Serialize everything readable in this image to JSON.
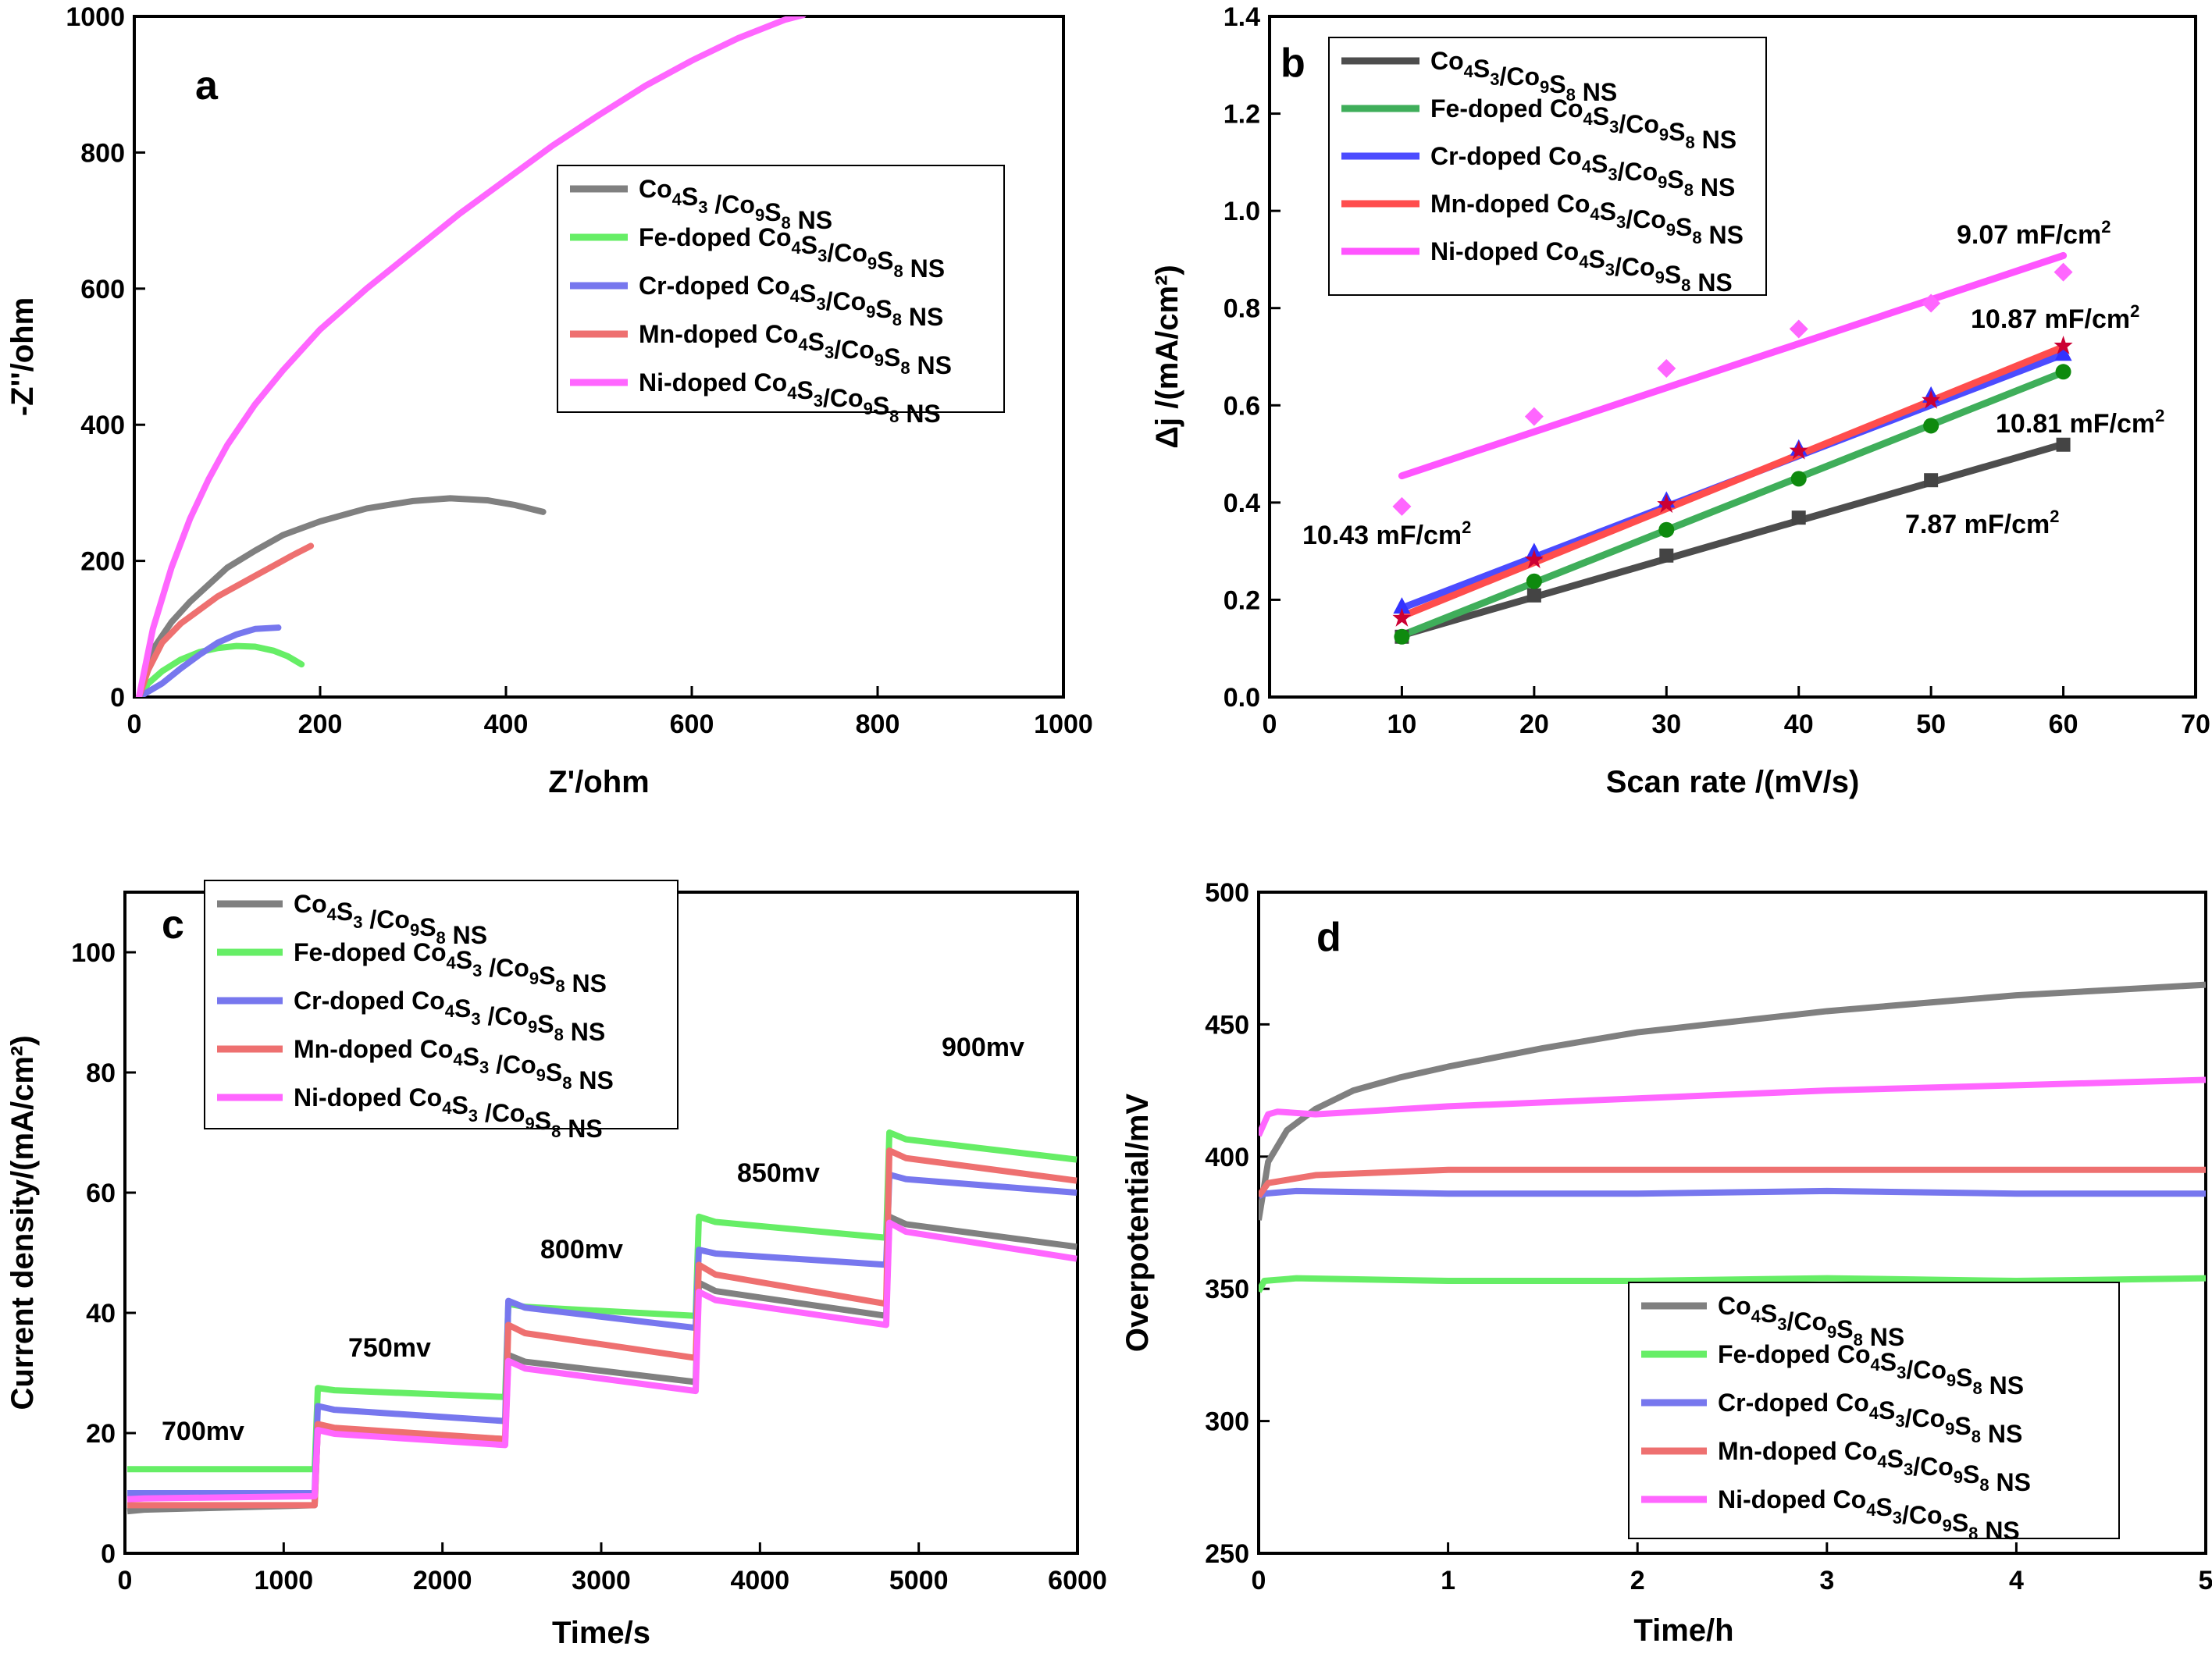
{
  "series_names": [
    "Co₄S₃/Co₉S₈ NS",
    "Fe-doped Co₄S₃/Co₉S₈ NS",
    "Cr-doped Co₄S₃/Co₉S₈ NS",
    "Mn-doped Co₄S₃/Co₉S₈ NS",
    "Ni-doped Co₄S₃/Co₉S₈ NS"
  ],
  "colors": {
    "co": "#808080",
    "fe": "#66ee66",
    "cr": "#7777ee",
    "mn": "#ee7070",
    "ni": "#ff66ff",
    "b_co": "#4d4d4d",
    "b_fe": "#3fae5a",
    "b_cr": "#4c4cff",
    "b_mn": "#ff4d4d",
    "b_ni": "#ff55ff",
    "b_co_mk": "#444444",
    "b_fe_mk": "#0e8a0e",
    "b_cr_mk": "#3333ff",
    "b_mn_mk": "#cc0033",
    "b_ni_mk": "#ff66ff",
    "ann_co": "#000000",
    "ann_fe": "#008800",
    "ann_cr": "#0000ee",
    "ann_mn": "#ee0000",
    "ann_ni": "#ff00ff"
  },
  "chart_data": [
    {
      "panel": "a",
      "type": "line",
      "xlabel": "Z'/ohm",
      "ylabel": "-Z''/ohm",
      "xlim": [
        0,
        1000
      ],
      "ylim": [
        0,
        1000
      ],
      "xticks": [
        0,
        200,
        400,
        600,
        800,
        1000
      ],
      "yticks": [
        0,
        200,
        400,
        600,
        800,
        1000
      ],
      "legend": [
        "Co4S3 /Co9S8 NS",
        "Fe-doped Co4S3/Co9S8 NS",
        "Cr-doped Co4S3/Co9S8 NS",
        "Mn-doped Co4S3/Co9S8 NS",
        "Ni-doped Co4S3/Co9S8 NS"
      ],
      "series": [
        {
          "name": "Co4S3/Co9S8 NS",
          "x": [
            5,
            20,
            40,
            60,
            80,
            100,
            130,
            160,
            200,
            250,
            300,
            340,
            380,
            410,
            440
          ],
          "y": [
            0,
            70,
            110,
            140,
            165,
            190,
            215,
            238,
            258,
            277,
            288,
            292,
            289,
            282,
            272
          ]
        },
        {
          "name": "Fe-doped Co4S3/Co9S8 NS",
          "x": [
            5,
            15,
            30,
            50,
            70,
            90,
            110,
            130,
            150,
            165,
            180
          ],
          "y": [
            0,
            20,
            38,
            55,
            66,
            72,
            75,
            74,
            68,
            60,
            48
          ]
        },
        {
          "name": "Cr-doped Co4S3/Co9S8 NS",
          "x": [
            5,
            15,
            30,
            50,
            70,
            90,
            110,
            130,
            155
          ],
          "y": [
            0,
            8,
            20,
            42,
            62,
            80,
            92,
            100,
            102
          ]
        },
        {
          "name": "Mn-doped Co4S3/Co9S8 NS",
          "x": [
            5,
            15,
            30,
            50,
            70,
            90,
            110,
            130,
            150,
            170,
            190
          ],
          "y": [
            0,
            40,
            80,
            108,
            128,
            148,
            163,
            178,
            193,
            208,
            222
          ]
        },
        {
          "name": "Ni-doped Co4S3/Co9S8 NS",
          "x": [
            5,
            20,
            40,
            60,
            80,
            100,
            130,
            160,
            200,
            250,
            300,
            350,
            400,
            450,
            500,
            550,
            600,
            650,
            700,
            720
          ],
          "y": [
            0,
            100,
            190,
            262,
            320,
            370,
            430,
            480,
            540,
            600,
            655,
            710,
            760,
            810,
            855,
            898,
            935,
            968,
            995,
            1002
          ]
        }
      ]
    },
    {
      "panel": "b",
      "type": "scatter",
      "xlabel": "Scan rate /(mV/s)",
      "ylabel": "Δj /(mA/cm²)",
      "xlim": [
        0,
        70
      ],
      "ylim": [
        0.0,
        1.4
      ],
      "xticks": [
        0,
        10,
        20,
        30,
        40,
        50,
        60,
        70
      ],
      "yticks": [
        0.0,
        0.2,
        0.4,
        0.6,
        0.8,
        1.0,
        1.2,
        1.4
      ],
      "legend": [
        "Co4S3/Co9S8 NS",
        "Fe-doped Co4S3/Co9S8 NS",
        "Cr-doped Co4S3/Co9S8 NS",
        "Mn-doped Co4S3/Co9S8 NS",
        "Ni-doped Co4S3/Co9S8 NS"
      ],
      "x": [
        10,
        20,
        30,
        40,
        50,
        60
      ],
      "series": [
        {
          "name": "Co4S3/Co9S8 NS",
          "marker": "square",
          "values": [
            0.124,
            0.209,
            0.291,
            0.369,
            0.446,
            0.519
          ],
          "fit": [
            0.127,
            0.52
          ],
          "slope_label": "7.87 mF/cm",
          "slope_sup": "2"
        },
        {
          "name": "Fe-doped Co4S3/Co9S8 NS",
          "marker": "circle",
          "values": [
            0.124,
            0.238,
            0.344,
            0.449,
            0.558,
            0.669
          ],
          "fit": [
            0.127,
            0.668
          ],
          "slope_label": "10.81 mF/cm",
          "slope_sup": "2"
        },
        {
          "name": "Cr-doped Co4S3/Co9S8 NS",
          "marker": "triangle",
          "values": [
            0.186,
            0.298,
            0.404,
            0.511,
            0.62,
            0.706
          ],
          "fit": [
            0.183,
            0.705
          ],
          "slope_label": "10.43 mF/cm",
          "slope_sup": "2"
        },
        {
          "name": "Mn-doped Co4S3/Co9S8 NS",
          "marker": "star",
          "values": [
            0.164,
            0.284,
            0.398,
            0.508,
            0.612,
            0.724
          ],
          "fit": [
            0.166,
            0.72
          ],
          "slope_label": "10.87 mF/cm",
          "slope_sup": "2"
        },
        {
          "name": "Ni-doped Co4S3/Co9S8 NS",
          "marker": "diamond",
          "values": [
            0.392,
            0.577,
            0.676,
            0.757,
            0.81,
            0.874
          ],
          "fit": [
            0.455,
            0.908
          ],
          "slope_label": "9.07 mF/cm",
          "slope_sup": "2"
        }
      ]
    },
    {
      "panel": "c",
      "type": "line",
      "xlabel": "Time/s",
      "ylabel": "Current density/(mA/cm²)",
      "xlim": [
        0,
        6000
      ],
      "ylim": [
        0,
        110
      ],
      "xticks": [
        0,
        1000,
        2000,
        3000,
        4000,
        5000,
        6000
      ],
      "yticks": [
        0,
        20,
        40,
        60,
        80,
        100
      ],
      "legend": [
        "Co4S3 /Co9S8 NS",
        "Fe-doped Co4S3 /Co9S8 NS",
        "Cr-doped Co4S3 /Co9S8 NS",
        "Mn-doped Co4S3 /Co9S8 NS",
        "Ni-doped Co4S3 /Co9S8 NS"
      ],
      "step_boundaries_s": [
        0,
        1200,
        2400,
        3600,
        4800,
        6000
      ],
      "step_labels": [
        "700mv",
        "750mv",
        "800mv",
        "850mv",
        "900mv"
      ],
      "series": [
        {
          "name": "Co4S3/Co9S8 NS",
          "step_start": [
            7,
            21,
            33,
            45,
            56
          ],
          "step_end": [
            8,
            19,
            28.5,
            39.5,
            51
          ]
        },
        {
          "name": "Fe-doped Co4S3/Co9S8 NS",
          "step_start": [
            14,
            27.5,
            41.5,
            56,
            70
          ],
          "step_end": [
            14,
            26,
            39.5,
            52.5,
            65.5
          ]
        },
        {
          "name": "Cr-doped Co4S3/Co9S8 NS",
          "step_start": [
            10,
            24.5,
            42,
            50.5,
            63
          ],
          "step_end": [
            10,
            22,
            37.5,
            48,
            60
          ]
        },
        {
          "name": "Mn-doped Co4S3/Co9S8 NS",
          "step_start": [
            8,
            21.5,
            38,
            48,
            67
          ],
          "step_end": [
            8,
            19,
            32.5,
            41.5,
            62
          ]
        },
        {
          "name": "Ni-doped Co4S3/Co9S8 NS",
          "step_start": [
            9,
            20.5,
            32,
            43.5,
            55
          ],
          "step_end": [
            9.5,
            18,
            27,
            38,
            49
          ]
        }
      ]
    },
    {
      "panel": "d",
      "type": "line",
      "xlabel": "Time/h",
      "ylabel": "Overpotential/mV",
      "xlim": [
        0,
        5
      ],
      "ylim": [
        250,
        500
      ],
      "xticks": [
        0,
        1,
        2,
        3,
        4,
        5
      ],
      "yticks": [
        250,
        300,
        350,
        400,
        450,
        500
      ],
      "legend": [
        "Co4S3/Co9S8 NS",
        "Fe-doped Co4S3/Co9S8 NS",
        "Cr-doped Co4S3/Co9S8 NS",
        "Mn-doped Co4S3/Co9S8 NS",
        "Ni-doped Co4S3/Co9S8 NS"
      ],
      "series": [
        {
          "name": "Co4S3/Co9S8 NS",
          "x": [
            0,
            0.05,
            0.15,
            0.3,
            0.5,
            0.75,
            1,
            1.5,
            2,
            2.5,
            3,
            3.5,
            4,
            4.5,
            5
          ],
          "y": [
            376,
            398,
            410,
            418,
            425,
            430,
            434,
            441,
            447,
            451,
            455,
            458,
            461,
            463,
            465
          ]
        },
        {
          "name": "Fe-doped Co4S3/Co9S8 NS",
          "x": [
            0,
            0.03,
            0.2,
            1,
            2,
            3,
            4,
            5
          ],
          "y": [
            349,
            353,
            354,
            353,
            353,
            354,
            353,
            354
          ]
        },
        {
          "name": "Cr-doped Co4S3/Co9S8 NS",
          "x": [
            0,
            0.03,
            0.2,
            1,
            2,
            3,
            4,
            5
          ],
          "y": [
            385,
            386,
            387,
            386,
            386,
            387,
            386,
            386
          ]
        },
        {
          "name": "Mn-doped Co4S3/Co9S8 NS",
          "x": [
            0,
            0.05,
            0.3,
            1,
            2,
            3,
            4,
            5
          ],
          "y": [
            385,
            390,
            393,
            395,
            395,
            395,
            395,
            395
          ]
        },
        {
          "name": "Ni-doped Co4S3/Co9S8 NS",
          "x": [
            0,
            0.05,
            0.1,
            0.3,
            1,
            2,
            3,
            4,
            5
          ],
          "y": [
            408,
            416,
            417,
            416,
            419,
            422,
            425,
            427,
            429
          ]
        }
      ]
    }
  ]
}
